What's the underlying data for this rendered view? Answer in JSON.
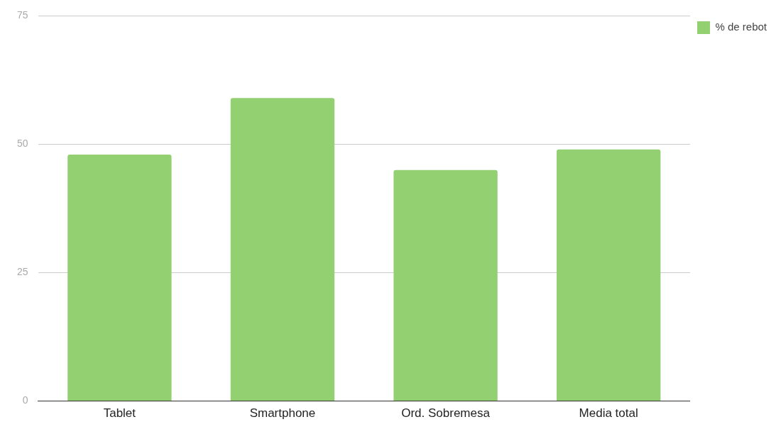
{
  "chart_data": {
    "type": "bar",
    "categories": [
      "Tablet",
      "Smartphone",
      "Ord. Sobremesa",
      "Media total"
    ],
    "series": [
      {
        "name": "% de rebot",
        "color": "#93d072",
        "values": [
          48,
          59,
          45,
          49
        ]
      }
    ],
    "ylim": [
      0,
      75
    ],
    "yticks": [
      0,
      25,
      50,
      75
    ],
    "grid": "y",
    "legend": "top right"
  }
}
